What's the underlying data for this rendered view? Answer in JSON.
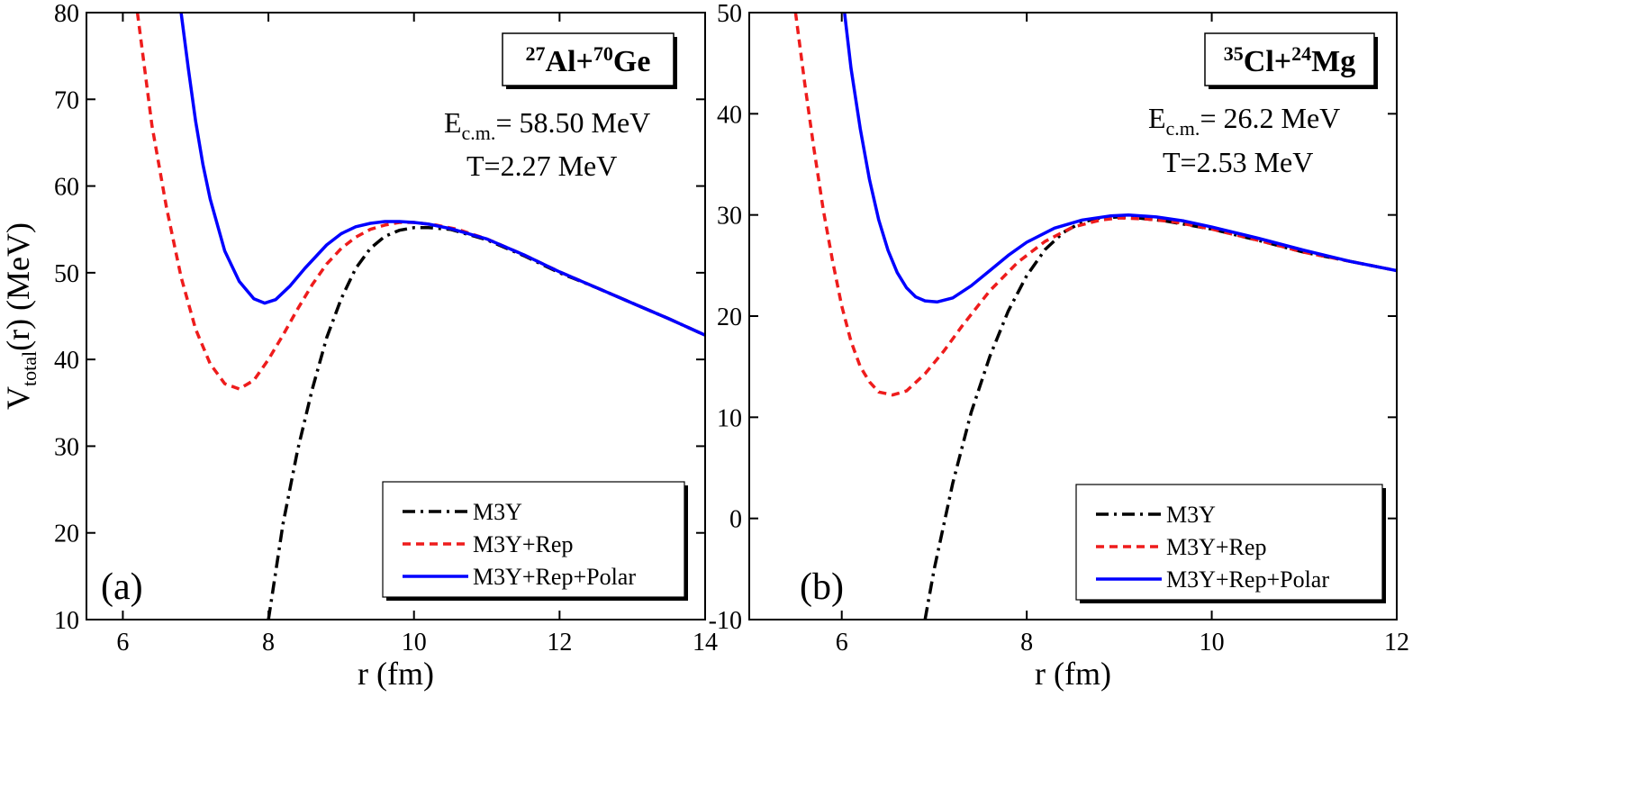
{
  "chart_data": [
    {
      "type": "line",
      "panel_label": "(a)",
      "reaction": {
        "a1": "27",
        "el1": "Al",
        "a2": "70",
        "el2": "Ge"
      },
      "annotation": {
        "E_prefix": "E",
        "E_sub": "c.m.",
        "E_value": "= 58.50 MeV",
        "T": "T=2.27 MeV"
      },
      "xlabel": "r (fm)",
      "ylabel": {
        "main": "V",
        "sub": "total",
        "rest": "(r) (MeV)"
      },
      "xlim": [
        5.5,
        14
      ],
      "ylim": [
        10,
        80
      ],
      "xticks": [
        6,
        8,
        10,
        12,
        14
      ],
      "yticks": [
        10,
        20,
        30,
        40,
        50,
        60,
        70,
        80
      ],
      "legend_position": "bottom-right",
      "series": [
        {
          "name": "M3Y",
          "color": "#000000",
          "dash": "dashdot",
          "x": [
            8.0,
            8.2,
            8.4,
            8.6,
            8.8,
            9.0,
            9.2,
            9.4,
            9.6,
            9.8,
            10.0,
            10.2,
            10.5,
            11.0,
            11.5,
            12.0,
            12.5,
            13.0,
            13.5,
            14.0
          ],
          "y": [
            10.0,
            21.0,
            29.5,
            36.5,
            42.5,
            47.0,
            50.5,
            52.8,
            54.2,
            54.9,
            55.2,
            55.2,
            55.0,
            53.8,
            52.0,
            50.0,
            48.3,
            46.5,
            44.7,
            42.8
          ]
        },
        {
          "name": "M3Y+Rep",
          "color": "#ee1c1c",
          "dash": "dashed",
          "x": [
            6.2,
            6.4,
            6.6,
            6.8,
            7.0,
            7.2,
            7.4,
            7.6,
            7.8,
            8.0,
            8.2,
            8.4,
            8.6,
            8.8,
            9.0,
            9.2,
            9.4,
            9.6,
            9.8,
            10.0,
            10.3,
            10.6,
            11.0,
            11.5,
            12.0,
            12.5,
            13.0,
            13.5,
            14.0
          ],
          "y": [
            80.0,
            67.0,
            57.5,
            49.5,
            43.5,
            39.5,
            37.2,
            36.6,
            37.6,
            40.0,
            42.8,
            45.8,
            48.6,
            51.0,
            52.8,
            54.1,
            55.0,
            55.5,
            55.8,
            55.8,
            55.5,
            55.0,
            53.9,
            52.1,
            50.1,
            48.3,
            46.5,
            44.7,
            42.8
          ]
        },
        {
          "name": "M3Y+Rep+Polar",
          "color": "#0000ff",
          "dash": "solid",
          "x": [
            6.8,
            6.9,
            7.0,
            7.1,
            7.2,
            7.4,
            7.6,
            7.8,
            7.95,
            8.1,
            8.3,
            8.5,
            8.8,
            9.0,
            9.2,
            9.4,
            9.6,
            9.8,
            10.0,
            10.2,
            10.5,
            11.0,
            11.5,
            12.0,
            12.5,
            13.0,
            13.5,
            14.0
          ],
          "y": [
            80.0,
            73.5,
            67.5,
            62.5,
            58.5,
            52.5,
            49.0,
            47.0,
            46.5,
            46.9,
            48.5,
            50.5,
            53.2,
            54.5,
            55.3,
            55.7,
            55.9,
            55.9,
            55.8,
            55.6,
            55.1,
            53.9,
            52.1,
            50.1,
            48.3,
            46.5,
            44.7,
            42.8
          ]
        }
      ]
    },
    {
      "type": "line",
      "panel_label": "(b)",
      "reaction": {
        "a1": "35",
        "el1": "Cl",
        "a2": "24",
        "el2": "Mg"
      },
      "annotation": {
        "E_prefix": "E",
        "E_sub": "c.m.",
        "E_value": "= 26.2 MeV",
        "T": "T=2.53 MeV"
      },
      "xlabel": "r (fm)",
      "ylabel": {
        "main": "",
        "sub": "",
        "rest": ""
      },
      "xlim": [
        5,
        12
      ],
      "ylim": [
        -10,
        50
      ],
      "xticks": [
        6,
        8,
        10,
        12
      ],
      "yticks": [
        -10,
        0,
        10,
        20,
        30,
        40,
        50
      ],
      "legend_position": "bottom-right",
      "series": [
        {
          "name": "M3Y",
          "color": "#000000",
          "dash": "dashdot",
          "x": [
            6.9,
            7.0,
            7.2,
            7.4,
            7.6,
            7.8,
            8.0,
            8.2,
            8.4,
            8.6,
            8.8,
            9.0,
            9.2,
            9.5,
            10.0,
            10.5,
            11.0,
            11.5,
            12.0
          ],
          "y": [
            -10.0,
            -5.0,
            3.5,
            10.5,
            16.0,
            20.5,
            24.0,
            26.6,
            28.3,
            29.3,
            29.7,
            29.8,
            29.7,
            29.4,
            28.6,
            27.5,
            26.3,
            25.4,
            24.5
          ]
        },
        {
          "name": "M3Y+Rep",
          "color": "#ee1c1c",
          "dash": "dashed",
          "x": [
            5.5,
            5.6,
            5.7,
            5.8,
            5.9,
            6.0,
            6.1,
            6.2,
            6.3,
            6.4,
            6.55,
            6.7,
            6.9,
            7.1,
            7.3,
            7.6,
            7.9,
            8.2,
            8.5,
            8.8,
            9.0,
            9.3,
            9.6,
            10.0,
            10.5,
            11.0,
            11.5,
            12.0
          ],
          "y": [
            50.0,
            43.0,
            36.5,
            30.5,
            25.5,
            21.0,
            17.5,
            15.0,
            13.5,
            12.5,
            12.2,
            12.6,
            14.3,
            16.5,
            19.0,
            22.5,
            25.3,
            27.4,
            28.8,
            29.5,
            29.7,
            29.6,
            29.3,
            28.6,
            27.5,
            26.3,
            25.4,
            24.5
          ]
        },
        {
          "name": "M3Y+Rep+Polar",
          "color": "#0000ff",
          "dash": "solid",
          "x": [
            6.03,
            6.1,
            6.2,
            6.3,
            6.4,
            6.5,
            6.6,
            6.7,
            6.8,
            6.9,
            7.03,
            7.2,
            7.4,
            7.6,
            7.8,
            8.0,
            8.3,
            8.6,
            8.9,
            9.1,
            9.4,
            9.7,
            10.0,
            10.5,
            11.0,
            11.5,
            12.0
          ],
          "y": [
            50.0,
            44.5,
            38.5,
            33.5,
            29.5,
            26.5,
            24.3,
            22.8,
            21.9,
            21.5,
            21.4,
            21.8,
            23.0,
            24.5,
            26.0,
            27.3,
            28.7,
            29.5,
            29.9,
            30.0,
            29.8,
            29.4,
            28.8,
            27.7,
            26.5,
            25.4,
            24.5
          ]
        }
      ]
    }
  ]
}
